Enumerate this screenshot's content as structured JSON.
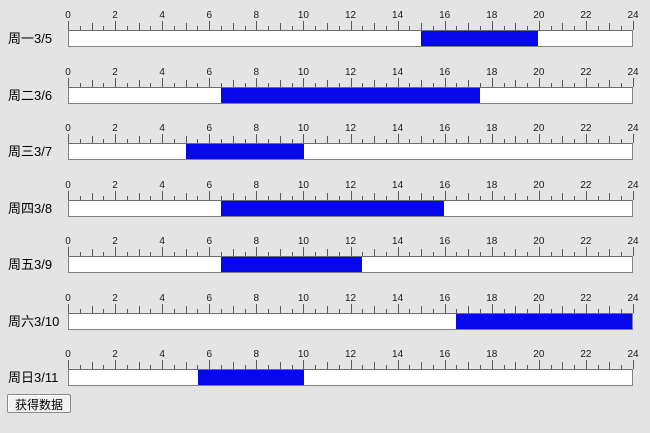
{
  "page": {
    "background_color": "#e4e4e4"
  },
  "ruler": {
    "min": 0,
    "max": 24,
    "label_step": 2,
    "tick_step": 0.5,
    "hour_labels": [
      0,
      2,
      4,
      6,
      8,
      10,
      12,
      14,
      16,
      18,
      20,
      22,
      24
    ]
  },
  "colors": {
    "bar": "#0707ee",
    "track_background": "#ffffff",
    "track_border": "#828282",
    "tick": "#5a5a5a",
    "text": "#000000"
  },
  "rows": [
    {
      "label": "周一3/5",
      "start": 15,
      "end": 20
    },
    {
      "label": "周二3/6",
      "start": 6.5,
      "end": 17.5
    },
    {
      "label": "周三3/7",
      "start": 5,
      "end": 10
    },
    {
      "label": "周四3/8",
      "start": 6.5,
      "end": 16
    },
    {
      "label": "周五3/9",
      "start": 6.5,
      "end": 12.5
    },
    {
      "label": "周六3/10",
      "start": 16.5,
      "end": 24
    },
    {
      "label": "周日3/11",
      "start": 5.5,
      "end": 10
    }
  ],
  "button": {
    "label": "获得数据"
  },
  "chart_data": {
    "type": "bar",
    "orientation": "horizontal",
    "categories": [
      "周一3/5",
      "周二3/6",
      "周三3/7",
      "周四3/8",
      "周五3/9",
      "周六3/10",
      "周日3/11"
    ],
    "series": [
      {
        "name": "start_hour",
        "values": [
          15,
          6.5,
          5,
          6.5,
          6.5,
          16.5,
          5.5
        ]
      },
      {
        "name": "end_hour",
        "values": [
          20,
          17.5,
          10,
          16,
          12.5,
          24,
          10
        ]
      }
    ],
    "title": "",
    "xlabel": "",
    "ylabel": "",
    "xlim": [
      0,
      24
    ],
    "x_tick_label_step": 2,
    "minor_tick_step": 0.5,
    "legend": "none",
    "grid": false
  }
}
